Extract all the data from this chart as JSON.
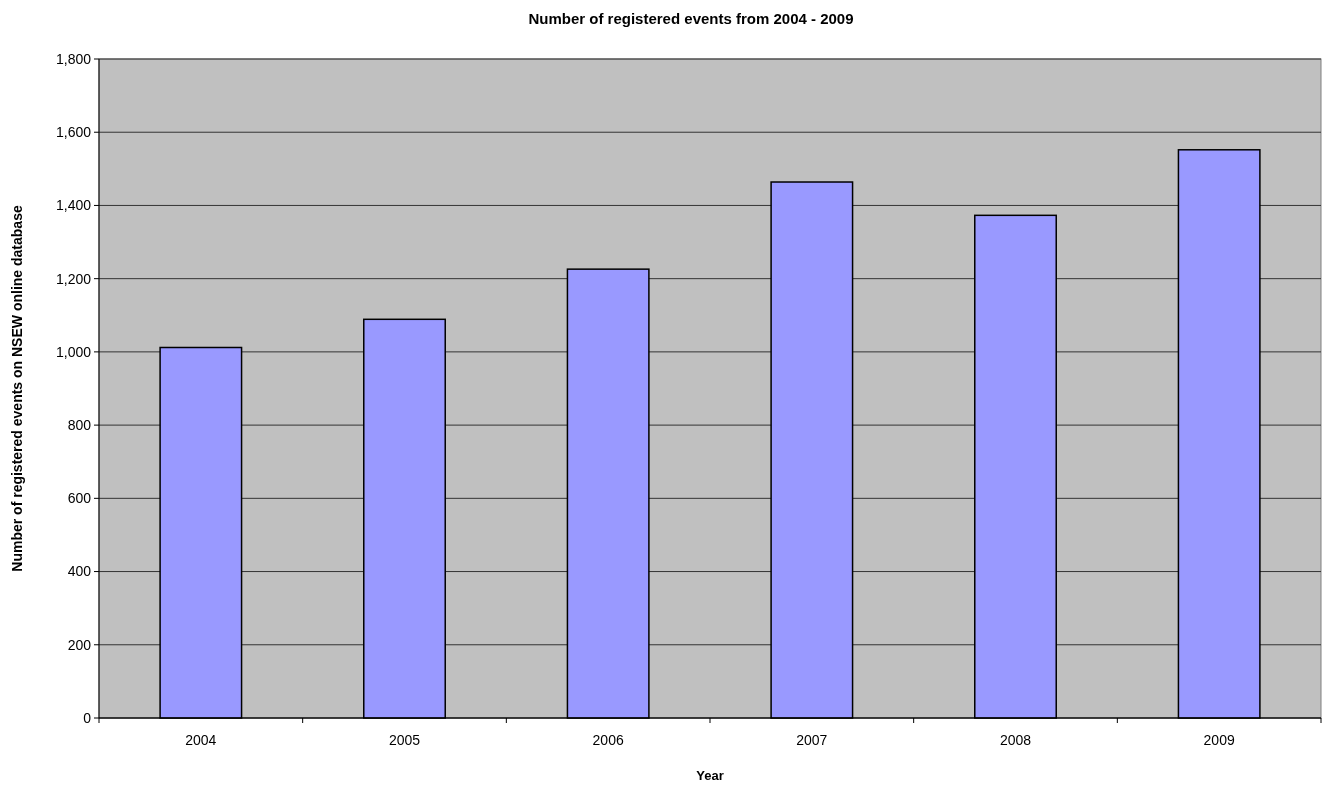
{
  "chart_data": {
    "type": "bar",
    "title": "Number of registered events from 2004 - 2009",
    "xlabel": "Year",
    "ylabel": "Number of registered events on NSEW online database",
    "categories": [
      "2004",
      "2005",
      "2006",
      "2007",
      "2008",
      "2009"
    ],
    "values": [
      1012,
      1089,
      1226,
      1464,
      1373,
      1552
    ],
    "color": "#9999ff",
    "ylim": [
      0,
      1800
    ],
    "yticks": [
      {
        "value": 0,
        "label": "0"
      },
      {
        "value": 200,
        "label": "200"
      },
      {
        "value": 400,
        "label": "400"
      },
      {
        "value": 600,
        "label": "600"
      },
      {
        "value": 800,
        "label": "800"
      },
      {
        "value": 1000,
        "label": "1,000"
      },
      {
        "value": 1200,
        "label": "1,200"
      },
      {
        "value": 1400,
        "label": "1,400"
      },
      {
        "value": 1600,
        "label": "1,600"
      },
      {
        "value": 1800,
        "label": "1,800"
      }
    ],
    "grid": "y"
  }
}
